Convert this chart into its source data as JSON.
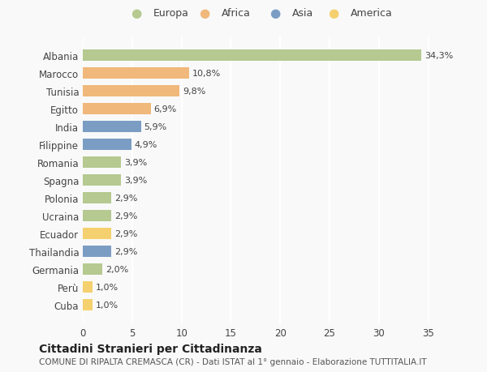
{
  "categories": [
    "Albania",
    "Marocco",
    "Tunisia",
    "Egitto",
    "India",
    "Filippine",
    "Romania",
    "Spagna",
    "Polonia",
    "Ucraina",
    "Ecuador",
    "Thailandia",
    "Germania",
    "Perù",
    "Cuba"
  ],
  "values": [
    34.3,
    10.8,
    9.8,
    6.9,
    5.9,
    4.9,
    3.9,
    3.9,
    2.9,
    2.9,
    2.9,
    2.9,
    2.0,
    1.0,
    1.0
  ],
  "labels": [
    "34,3%",
    "10,8%",
    "9,8%",
    "6,9%",
    "5,9%",
    "4,9%",
    "3,9%",
    "3,9%",
    "2,9%",
    "2,9%",
    "2,9%",
    "2,9%",
    "2,0%",
    "1,0%",
    "1,0%"
  ],
  "colors": [
    "#b5c990",
    "#f0b87a",
    "#f0b87a",
    "#f0b87a",
    "#7b9dc4",
    "#7b9dc4",
    "#b5c990",
    "#b5c990",
    "#b5c990",
    "#b5c990",
    "#f5d06e",
    "#7b9dc4",
    "#b5c990",
    "#f5d06e",
    "#f5d06e"
  ],
  "legend_labels": [
    "Europa",
    "Africa",
    "Asia",
    "America"
  ],
  "legend_colors": [
    "#b5c990",
    "#f0b87a",
    "#7b9dc4",
    "#f5d06e"
  ],
  "title": "Cittadini Stranieri per Cittadinanza",
  "subtitle": "COMUNE DI RIPALTA CREMASCA (CR) - Dati ISTAT al 1° gennaio - Elaborazione TUTTITALIA.IT",
  "xlim": [
    0,
    37
  ],
  "xticks": [
    0,
    5,
    10,
    15,
    20,
    25,
    30,
    35
  ],
  "background_color": "#f9f9f9",
  "grid_color": "#ffffff",
  "bar_height": 0.65
}
